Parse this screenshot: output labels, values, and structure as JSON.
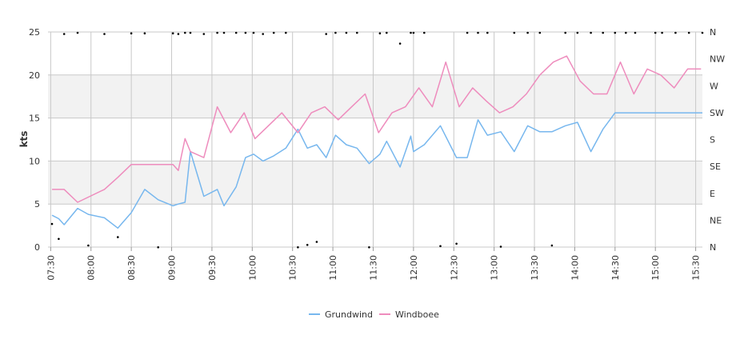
{
  "chart_data": {
    "type": "line",
    "ylabel": "kts",
    "ylim": [
      0,
      25
    ],
    "y_ticks": [
      "0",
      "5",
      "10",
      "15",
      "20",
      "25"
    ],
    "y2_ticks": [
      "N",
      "NE",
      "E",
      "SE",
      "S",
      "SW",
      "W",
      "NW",
      "N"
    ],
    "y2_range_deg": [
      0,
      360
    ],
    "x_range": [
      "07:28",
      "15:35"
    ],
    "x_ticks": [
      "07:30",
      "08:00",
      "08:30",
      "09:00",
      "09:30",
      "10:00",
      "10:30",
      "11:00",
      "11:30",
      "12:00",
      "12:30",
      "13:00",
      "13:30",
      "14:00",
      "14:30",
      "15:00",
      "15:30"
    ],
    "grid_bands": [
      [
        5,
        10
      ],
      [
        15,
        20
      ]
    ],
    "legend_position": "bottom-center",
    "colors": {
      "Grundwind": "#77b7ee",
      "Windboee": "#ee8cbd",
      "direction_dots": "#000000",
      "band": "#f2f2f2",
      "grid": "#c8c8c8"
    },
    "series": [
      {
        "name": "Grundwind",
        "x": [
          "07:31",
          "07:36",
          "07:40",
          "07:50",
          "07:58",
          "08:10",
          "08:20",
          "08:30",
          "08:40",
          "08:50",
          "09:01",
          "09:05",
          "09:10",
          "09:14",
          "09:24",
          "09:34",
          "09:39",
          "09:48",
          "09:55",
          "10:01",
          "10:08",
          "10:16",
          "10:25",
          "10:34",
          "10:41",
          "10:48",
          "10:55",
          "11:02",
          "11:10",
          "11:18",
          "11:27",
          "11:35",
          "11:40",
          "11:50",
          "11:58",
          "12:00",
          "12:08",
          "12:20",
          "12:32",
          "12:40",
          "12:48",
          "12:55",
          "13:05",
          "13:15",
          "13:25",
          "13:34",
          "13:43",
          "13:53",
          "14:02",
          "14:12",
          "14:21",
          "14:30",
          "14:38",
          "14:45",
          "15:00",
          "15:05",
          "15:15",
          "15:25",
          "15:35"
        ],
        "values": [
          3.7,
          3.3,
          2.6,
          4.5,
          3.8,
          3.4,
          2.2,
          4.0,
          6.7,
          5.5,
          4.8,
          5.0,
          5.2,
          11.1,
          5.9,
          6.7,
          4.8,
          7.0,
          10.4,
          10.8,
          10.0,
          10.6,
          11.5,
          13.7,
          11.5,
          11.9,
          10.4,
          13.0,
          11.9,
          11.5,
          9.7,
          10.8,
          12.3,
          9.3,
          12.9,
          11.1,
          11.9,
          14.1,
          10.4,
          10.4,
          14.8,
          13.0,
          13.4,
          11.1,
          14.1,
          13.4,
          13.4,
          14.1,
          14.5,
          11.1,
          13.7,
          15.6,
          15.6,
          15.6,
          15.6,
          15.6,
          15.6,
          15.6,
          15.6
        ]
      },
      {
        "name": "Windboee",
        "x": [
          "07:31",
          "07:40",
          "07:50",
          "08:10",
          "08:20",
          "08:30",
          "08:40",
          "08:50",
          "09:01",
          "09:05",
          "09:10",
          "09:14",
          "09:24",
          "09:34",
          "09:44",
          "09:54",
          "10:02",
          "10:12",
          "10:22",
          "10:34",
          "10:44",
          "10:54",
          "11:04",
          "11:14",
          "11:24",
          "11:34",
          "11:44",
          "11:54",
          "12:04",
          "12:14",
          "12:24",
          "12:34",
          "12:44",
          "12:54",
          "13:04",
          "13:14",
          "13:24",
          "13:34",
          "13:44",
          "13:54",
          "14:04",
          "14:14",
          "14:24",
          "14:34",
          "14:44",
          "14:54",
          "15:04",
          "15:14",
          "15:24",
          "15:34"
        ],
        "values": [
          6.7,
          6.7,
          5.2,
          6.7,
          8.1,
          9.6,
          9.6,
          9.6,
          9.6,
          8.9,
          12.6,
          11.1,
          10.4,
          16.3,
          13.3,
          15.6,
          12.6,
          14.1,
          15.6,
          13.3,
          15.6,
          16.3,
          14.8,
          16.3,
          17.8,
          13.3,
          15.6,
          16.3,
          18.5,
          16.3,
          21.5,
          16.3,
          18.5,
          17.0,
          15.6,
          16.3,
          17.8,
          20.0,
          21.5,
          22.2,
          19.3,
          17.8,
          17.8,
          21.5,
          17.8,
          20.7,
          20.0,
          18.5,
          20.7,
          20.7
        ]
      }
    ],
    "direction": {
      "unit": "deg",
      "x": [
        "07:31",
        "07:36",
        "07:40",
        "07:50",
        "07:58",
        "08:10",
        "08:20",
        "08:30",
        "08:40",
        "08:50",
        "09:01",
        "09:05",
        "09:10",
        "09:14",
        "09:24",
        "09:34",
        "09:39",
        "09:48",
        "09:55",
        "10:01",
        "10:08",
        "10:16",
        "10:25",
        "10:34",
        "10:41",
        "10:48",
        "10:55",
        "11:02",
        "11:10",
        "11:18",
        "11:27",
        "11:35",
        "11:40",
        "11:50",
        "11:58",
        "12:00",
        "12:08",
        "12:20",
        "12:32",
        "12:40",
        "12:48",
        "12:55",
        "13:05",
        "13:15",
        "13:25",
        "13:34",
        "13:43",
        "13:53",
        "14:02",
        "14:12",
        "14:21",
        "14:30",
        "14:38",
        "14:45",
        "15:00",
        "15:05",
        "15:15",
        "15:25",
        "15:35"
      ],
      "values": [
        40,
        15,
        358,
        360,
        4,
        358,
        18,
        359,
        359,
        1,
        359,
        358,
        360,
        360,
        358,
        360,
        360,
        360,
        360,
        360,
        358,
        360,
        360,
        1,
        5,
        10,
        358,
        360,
        360,
        360,
        1,
        359,
        360,
        342,
        360,
        360,
        360,
        3,
        7,
        360,
        360,
        360,
        2,
        360,
        360,
        360,
        4,
        360,
        360,
        360,
        360,
        360,
        360,
        360,
        360,
        360,
        360,
        360,
        360
      ]
    }
  }
}
